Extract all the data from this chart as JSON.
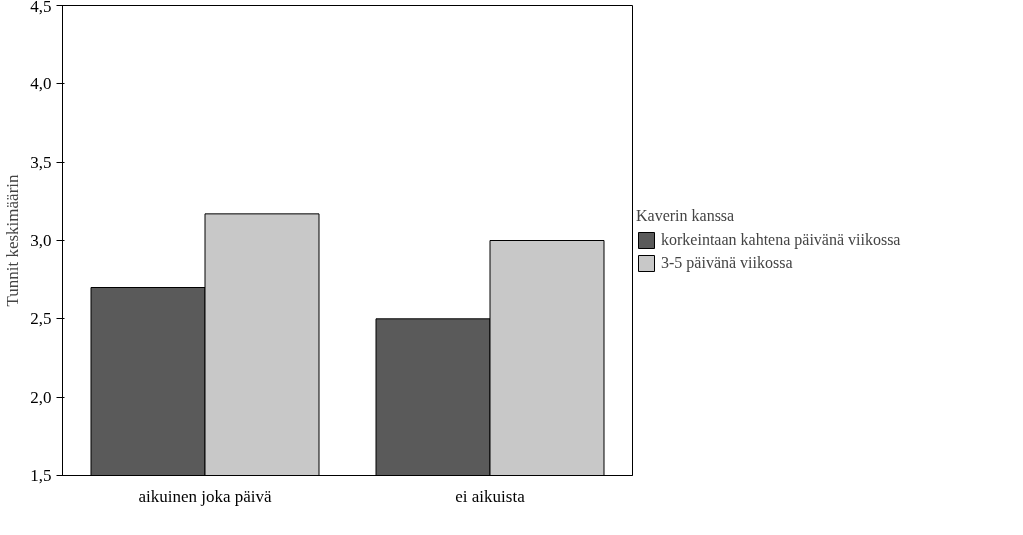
{
  "chart_data": {
    "type": "bar",
    "ylabel": "Tunnit keskimäärin",
    "legend_title": "Kaverin kanssa",
    "categories": [
      "aikuinen joka päivä",
      "ei aikuista"
    ],
    "series": [
      {
        "name": "korkeintaan kahtena päivänä viikossa",
        "color": "#5a5a5a",
        "values": [
          2.7,
          2.5
        ]
      },
      {
        "name": "3-5 päivänä viikossa",
        "color": "#c8c8c8",
        "values": [
          3.17,
          3.0
        ]
      }
    ],
    "ylim": [
      1.5,
      4.5
    ],
    "yticks": [
      {
        "value": 1.5,
        "label": "1,5"
      },
      {
        "value": 2.0,
        "label": "2,0"
      },
      {
        "value": 2.5,
        "label": "2,5"
      },
      {
        "value": 3.0,
        "label": "3,0"
      },
      {
        "value": 3.5,
        "label": "3,5"
      },
      {
        "value": 4.0,
        "label": "4,0"
      },
      {
        "value": 4.5,
        "label": "4,5"
      }
    ],
    "grid": false,
    "legend": "right"
  }
}
